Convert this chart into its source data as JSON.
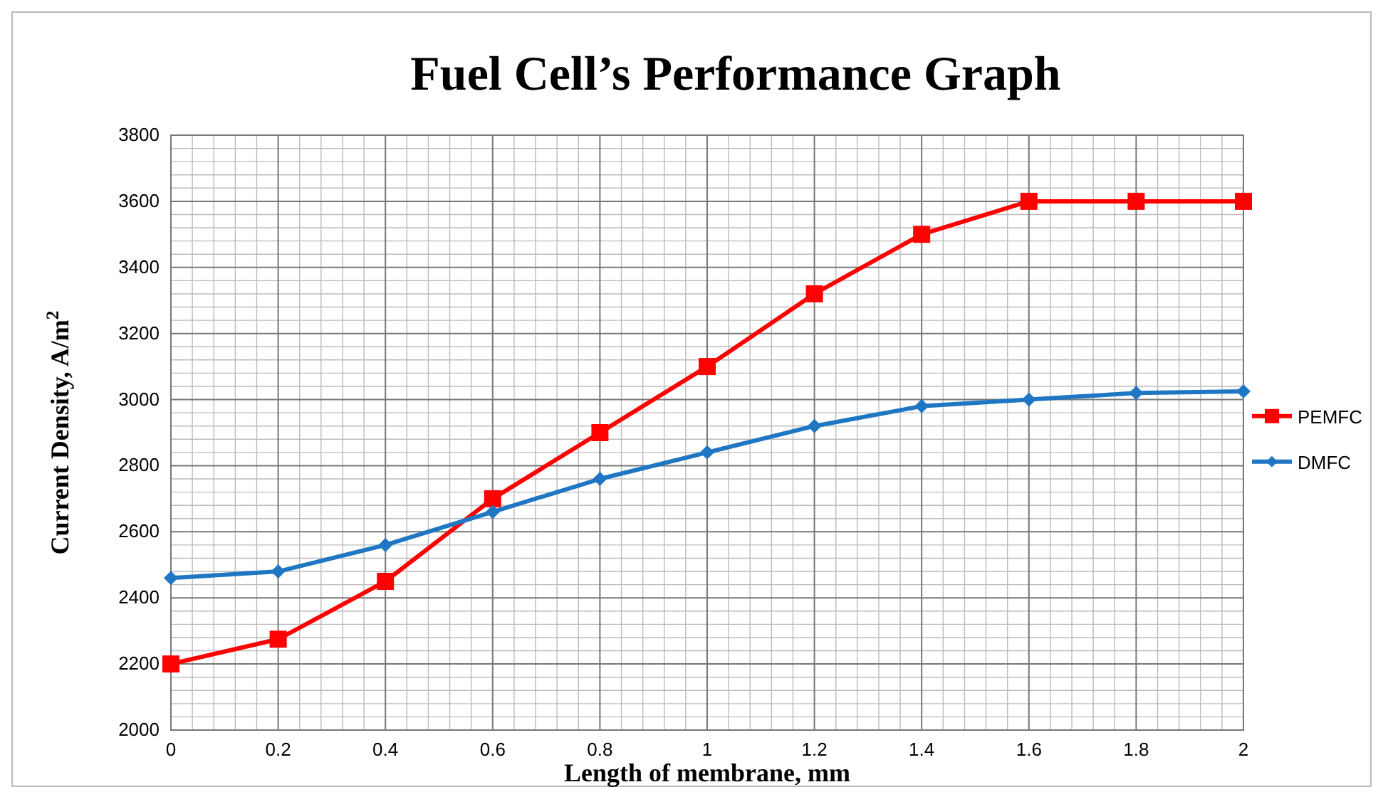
{
  "chart_data": {
    "type": "line",
    "title": "Fuel Cell’s Performance Graph",
    "xlabel": "Length of membrane, mm",
    "ylabel": "Current Density, A/m$^{2}$",
    "x": [
      0,
      0.2,
      0.4,
      0.6,
      0.8,
      1,
      1.2,
      1.4,
      1.6,
      1.8,
      2
    ],
    "xlim": [
      0,
      2
    ],
    "xticks": [
      0,
      0.2,
      0.4,
      0.6,
      0.8,
      1,
      1.2,
      1.4,
      1.6,
      1.8,
      2
    ],
    "ylim": [
      2000,
      3800
    ],
    "yticks": [
      2000,
      2200,
      2400,
      2600,
      2800,
      3000,
      3200,
      3400,
      3600,
      3800
    ],
    "grid": true,
    "legend": "right",
    "series": [
      {
        "name": "PEMFC",
        "color": "#ff0000",
        "marker": "square",
        "values": [
          2200,
          2275,
          2450,
          2700,
          2900,
          3100,
          3320,
          3500,
          3600,
          3600,
          3600
        ]
      },
      {
        "name": "DMFC",
        "color": "#1f77c4",
        "marker": "diamond",
        "values": [
          2460,
          2480,
          2560,
          2660,
          2760,
          2840,
          2920,
          2980,
          3000,
          3020,
          3025
        ]
      }
    ]
  }
}
